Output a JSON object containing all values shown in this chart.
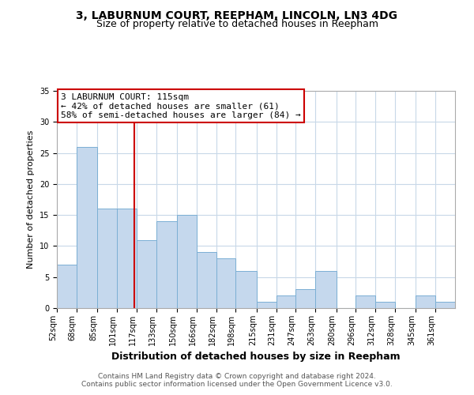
{
  "title": "3, LABURNUM COURT, REEPHAM, LINCOLN, LN3 4DG",
  "subtitle": "Size of property relative to detached houses in Reepham",
  "xlabel": "Distribution of detached houses by size in Reepham",
  "ylabel": "Number of detached properties",
  "bin_edges": [
    52,
    68,
    85,
    101,
    117,
    133,
    150,
    166,
    182,
    198,
    215,
    231,
    247,
    263,
    280,
    296,
    312,
    328,
    345,
    361,
    377
  ],
  "bar_heights": [
    7,
    26,
    16,
    16,
    11,
    14,
    15,
    9,
    8,
    6,
    1,
    2,
    3,
    6,
    0,
    2,
    1,
    0,
    2,
    1
  ],
  "bar_color": "#c5d8ed",
  "bar_edge_color": "#7bafd4",
  "property_size": 115,
  "vline_color": "#cc0000",
  "annotation_line1": "3 LABURNUM COURT: 115sqm",
  "annotation_line2": "← 42% of detached houses are smaller (61)",
  "annotation_line3": "58% of semi-detached houses are larger (84) →",
  "annotation_box_color": "white",
  "annotation_box_edge": "#cc0000",
  "ylim": [
    0,
    35
  ],
  "yticks": [
    0,
    5,
    10,
    15,
    20,
    25,
    30,
    35
  ],
  "footer_line1": "Contains HM Land Registry data © Crown copyright and database right 2024.",
  "footer_line2": "Contains public sector information licensed under the Open Government Licence v3.0.",
  "background_color": "#ffffff",
  "grid_color": "#c8d8e8",
  "title_fontsize": 10,
  "subtitle_fontsize": 9,
  "annotation_fontsize": 8,
  "axis_label_fontsize": 8,
  "tick_fontsize": 7
}
